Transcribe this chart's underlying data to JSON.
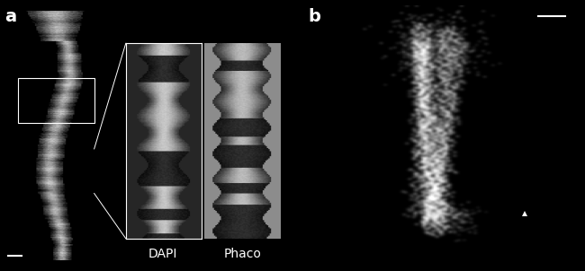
{
  "background_color": "#000000",
  "label_a": "a",
  "label_b": "b",
  "label_dapi": "DAPI",
  "label_phaco": "Phaco",
  "label_color": "#ffffff",
  "label_fontsize": 14,
  "sublabel_fontsize": 10,
  "fig_width": 6.5,
  "fig_height": 3.02,
  "dpi": 100
}
